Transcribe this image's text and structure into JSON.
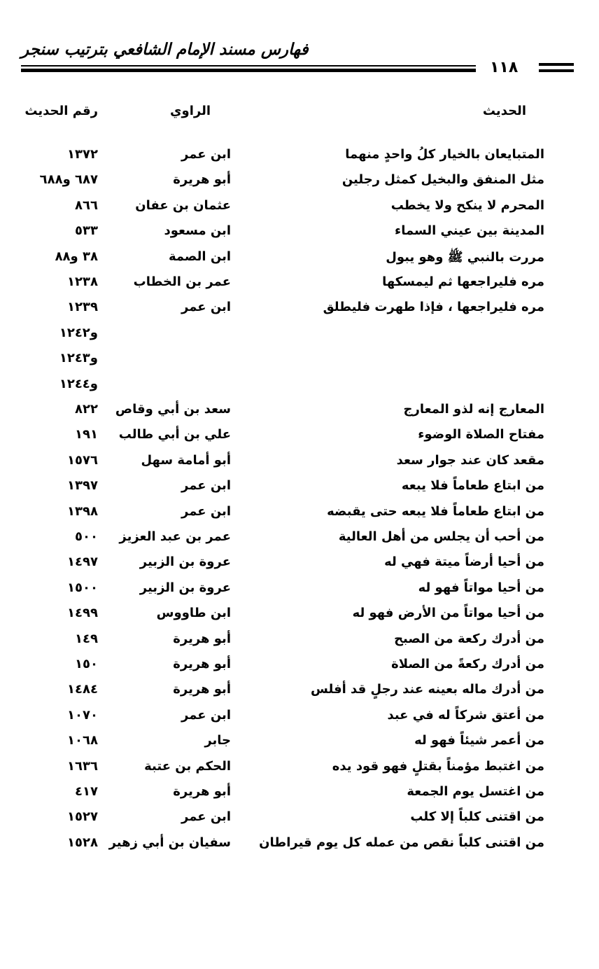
{
  "header": {
    "title": "فهارس مسند الإمام الشافعي بترتيب سنجر",
    "page_number": "١١٨"
  },
  "columns": {
    "hadith": "الحديث",
    "narrator": "الراوي",
    "number": "رقم الحديث"
  },
  "rows": [
    {
      "hadith": "المتبايعان بالخيار كلُ واحدٍ منهما",
      "narrator": "ابن عمر",
      "number": "١٣٧٢"
    },
    {
      "hadith": "مثل المنفق والبخيل كمثل رجلين",
      "narrator": "أبو هريرة",
      "number": "٦٨٧ و٦٨٨"
    },
    {
      "hadith": "المحرم لا ينكح ولا يخطب",
      "narrator": "عثمان بن عفان",
      "number": "٨٦٦"
    },
    {
      "hadith": "المدينة بين عيني السماء",
      "narrator": "ابن مسعود",
      "number": "٥٣٣"
    },
    {
      "hadith": "مررت بالنبي ﷺ وهو يبول",
      "narrator": "ابن الصمة",
      "number": "٣٨ و٨٨"
    },
    {
      "hadith": "مره فليراجعها ثم ليمسكها",
      "narrator": "عمر بن الخطاب",
      "number": "١٢٣٨"
    },
    {
      "hadith": "مره فليراجعها ، فإذا طهرت فليطلق",
      "narrator": "ابن عمر",
      "number": "١٢٣٩"
    },
    {
      "hadith": "",
      "narrator": "",
      "number": "و١٢٤٢"
    },
    {
      "hadith": "",
      "narrator": "",
      "number": "و١٢٤٣"
    },
    {
      "hadith": "",
      "narrator": "",
      "number": "و١٢٤٤"
    },
    {
      "hadith": "المعارج إنه لذو المعارج",
      "narrator": "سعد بن أبي وقاص",
      "number": "٨٢٢"
    },
    {
      "hadith": "مفتاح الصلاة الوضوء",
      "narrator": "علي بن أبي طالب",
      "number": "١٩١"
    },
    {
      "hadith": "مقعد كان عند جوار سعد",
      "narrator": "أبو أمامة سهل",
      "number": "١٥٧٦"
    },
    {
      "hadith": "من ابتاع طعاماً فلا يبعه",
      "narrator": "ابن عمر",
      "number": "١٣٩٧"
    },
    {
      "hadith": "من ابتاع طعاماً فلا يبعه حتى يقبضه",
      "narrator": "ابن عمر",
      "number": "١٣٩٨"
    },
    {
      "hadith": "من أحب أن يجلس من أهل العالية",
      "narrator": "عمر بن عبد العزيز",
      "number": "٥٠٠"
    },
    {
      "hadith": "من أحيا أرضاً ميتة فهي له",
      "narrator": "عروة بن الزبير",
      "number": "١٤٩٧"
    },
    {
      "hadith": "من أحيا مواتاً فهو له",
      "narrator": "عروة بن الزبير",
      "number": "١٥٠٠"
    },
    {
      "hadith": "من أحيا مواتاً من الأرض فهو له",
      "narrator": "ابن طاووس",
      "number": "١٤٩٩"
    },
    {
      "hadith": "من أدرك ركعة من الصبح",
      "narrator": "أبو هريرة",
      "number": "١٤٩"
    },
    {
      "hadith": "من أدرك ركعةً من الصلاة",
      "narrator": "أبو هريرة",
      "number": "١٥٠"
    },
    {
      "hadith": "من أدرك ماله بعينه عند رجلٍ قد أفلس",
      "narrator": "أبو هريرة",
      "number": "١٤٨٤"
    },
    {
      "hadith": "من أعتق شركاً له في عبد",
      "narrator": "ابن عمر",
      "number": "١٠٧٠"
    },
    {
      "hadith": "من أعمر شيئاً فهو له",
      "narrator": "جابر",
      "number": "١٠٦٨"
    },
    {
      "hadith": "من اغتبط مؤمناً بقتلٍ فهو قود يده",
      "narrator": "الحكم بن عتبة",
      "number": "١٦٣٦"
    },
    {
      "hadith": "من اغتسل يوم الجمعة",
      "narrator": "أبو هريرة",
      "number": "٤١٧"
    },
    {
      "hadith": "من اقتنى كلباً إلا كلب",
      "narrator": "ابن عمر",
      "number": "١٥٢٧"
    },
    {
      "hadith": "من اقتنى كلباً نقص من عمله كل يوم قيراطان",
      "narrator": "سفيان بن أبي زهير",
      "number": "١٥٢٨"
    }
  ]
}
